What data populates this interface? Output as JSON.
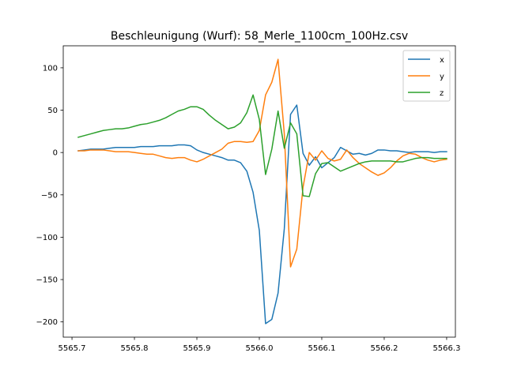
{
  "chart_data": {
    "type": "line",
    "title": "Beschleunigung (Wurf): 58_Merle_1100cm_100Hz.csv",
    "xlabel": "",
    "ylabel": "",
    "xlim": [
      5565.686,
      5566.314
    ],
    "ylim": [
      -218,
      126
    ],
    "xticks": [
      5565.7,
      5565.8,
      5565.9,
      5566.0,
      5566.1,
      5566.2,
      5566.3
    ],
    "xtick_labels": [
      "5565.7",
      "5565.8",
      "5565.9",
      "5566.0",
      "5566.1",
      "5566.2",
      "5566.3"
    ],
    "yticks": [
      100,
      50,
      0,
      -50,
      -100,
      -150,
      -200
    ],
    "ytick_labels": [
      "100",
      "50",
      "0",
      "−50",
      "−100",
      "−150",
      "−200"
    ],
    "grid": false,
    "legend_position": "top-right",
    "x": [
      5565.71,
      5565.72,
      5565.73,
      5565.74,
      5565.75,
      5565.76,
      5565.77,
      5565.78,
      5565.79,
      5565.8,
      5565.81,
      5565.82,
      5565.83,
      5565.84,
      5565.85,
      5565.86,
      5565.87,
      5565.88,
      5565.89,
      5565.9,
      5565.91,
      5565.92,
      5565.93,
      5565.94,
      5565.95,
      5565.96,
      5565.97,
      5565.98,
      5565.99,
      5566.0,
      5566.01,
      5566.02,
      5566.03,
      5566.04,
      5566.05,
      5566.06,
      5566.07,
      5566.08,
      5566.09,
      5566.1,
      5566.11,
      5566.12,
      5566.13,
      5566.14,
      5566.15,
      5566.16,
      5566.17,
      5566.18,
      5566.19,
      5566.2,
      5566.21,
      5566.22,
      5566.23,
      5566.24,
      5566.25,
      5566.26,
      5566.27,
      5566.28,
      5566.29,
      5566.3
    ],
    "series": [
      {
        "name": "x",
        "color": "#1f77b4",
        "values": [
          2,
          3,
          4,
          4,
          4,
          5,
          6,
          6,
          6,
          6,
          7,
          7,
          7,
          8,
          8,
          8,
          9,
          9,
          8,
          3,
          0,
          -2,
          -4,
          -6,
          -9,
          -9,
          -12,
          -22,
          -47,
          -92,
          -202,
          -197,
          -166,
          -90,
          45,
          56,
          -1,
          -15,
          -5,
          -18,
          -12,
          -6,
          6,
          2,
          -2,
          -1,
          -3,
          -1,
          3,
          3,
          2,
          2,
          1,
          0,
          1,
          1,
          1,
          0,
          1,
          1
        ]
      },
      {
        "name": "y",
        "color": "#ff7f0e",
        "values": [
          2,
          2,
          3,
          3,
          3,
          2,
          1,
          1,
          1,
          0,
          -1,
          -2,
          -2,
          -4,
          -6,
          -7,
          -6,
          -6,
          -9,
          -11,
          -8,
          -4,
          0,
          4,
          11,
          13,
          13,
          12,
          13,
          26,
          68,
          83,
          110,
          22,
          -135,
          -114,
          -41,
          0,
          -9,
          2,
          -7,
          -10,
          -8,
          3,
          -6,
          -13,
          -18,
          -23,
          -27,
          -24,
          -18,
          -10,
          -4,
          -1,
          -2,
          -6,
          -9,
          -11,
          -9,
          -8
        ]
      },
      {
        "name": "z",
        "color": "#2ca02c",
        "values": [
          18,
          20,
          22,
          24,
          26,
          27,
          28,
          28,
          29,
          31,
          33,
          34,
          36,
          38,
          41,
          45,
          49,
          51,
          54,
          54,
          51,
          44,
          38,
          33,
          28,
          30,
          35,
          47,
          68,
          39,
          -26,
          4,
          49,
          5,
          35,
          22,
          -51,
          -52,
          -25,
          -13,
          -12,
          -17,
          -22,
          -19,
          -16,
          -13,
          -11,
          -10,
          -10,
          -10,
          -10,
          -11,
          -11,
          -9,
          -7,
          -6,
          -6,
          -7,
          -7,
          -7
        ]
      }
    ]
  }
}
